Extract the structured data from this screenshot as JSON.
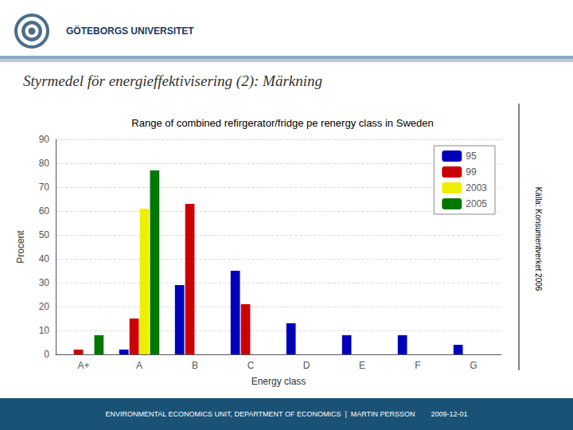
{
  "chart_data": {
    "type": "bar",
    "title": "Range of combined refirgerator/fridge pe renergy class in Sweden",
    "xlabel": "Energy class",
    "ylabel": "Procent",
    "categories": [
      "A+",
      "A",
      "B",
      "C",
      "D",
      "E",
      "F",
      "G"
    ],
    "series": [
      {
        "name": "95",
        "color": "#0000BB",
        "values": [
          0,
          2,
          29,
          35,
          13,
          8,
          8,
          4
        ]
      },
      {
        "name": "99",
        "color": "#CC0000",
        "values": [
          2,
          15,
          63,
          21,
          0,
          0,
          0,
          0
        ]
      },
      {
        "name": "2003",
        "color": "#EEEE00",
        "values": [
          0,
          61,
          0,
          0,
          0,
          0,
          0,
          0
        ]
      },
      {
        "name": "2005",
        "color": "#007700",
        "values": [
          8,
          77,
          0,
          0,
          0,
          0,
          0,
          0
        ]
      }
    ],
    "ylim": [
      0,
      90
    ],
    "yticks": [
      0,
      10,
      20,
      30,
      40,
      50,
      60,
      70,
      80,
      90
    ],
    "grid": true,
    "legend": "upper right",
    "annotations": [
      "Styrmedel för energieffektivisering (2): Märkning",
      "GÖTEBORGS UNIVERSITET",
      "Källa: Konsumentverket 2006",
      "ENVIRONMENTAL ECONOMICS UNIT, DEPARTMENT OF ECONOMICS  |  MARTIN PERSSON        2009-12-01"
    ]
  }
}
